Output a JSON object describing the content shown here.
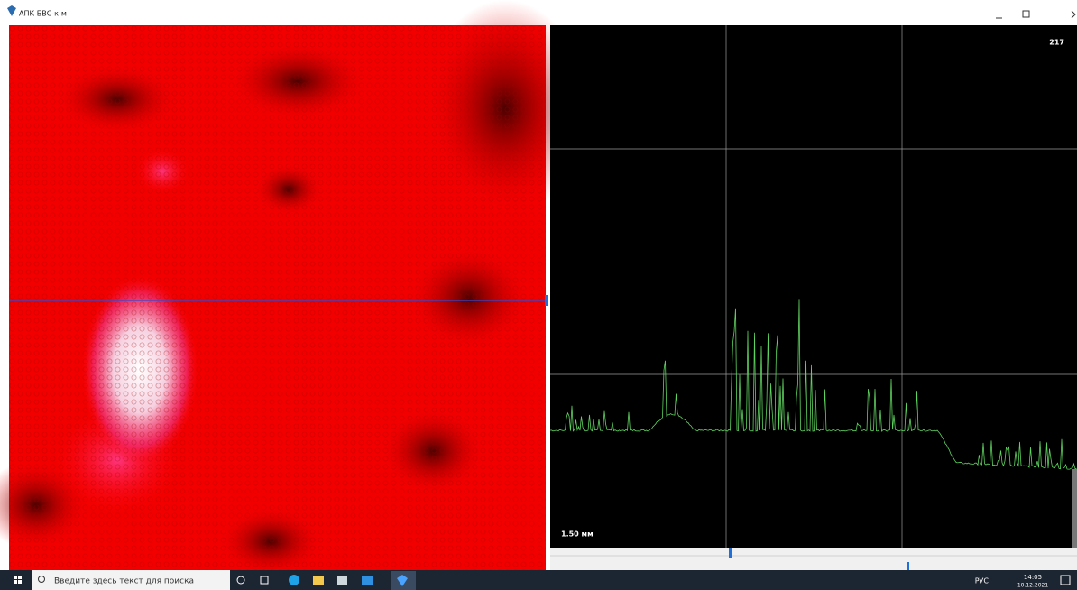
{
  "window": {
    "title": "АПК БВС-к-м"
  },
  "plot": {
    "counter": "217",
    "scale_label": "1.50 мм"
  },
  "taskbar": {
    "search_placeholder": "Введите здесь текст для поиска",
    "language": "РУС",
    "time": "14:05",
    "date": "10.12.2021"
  }
}
